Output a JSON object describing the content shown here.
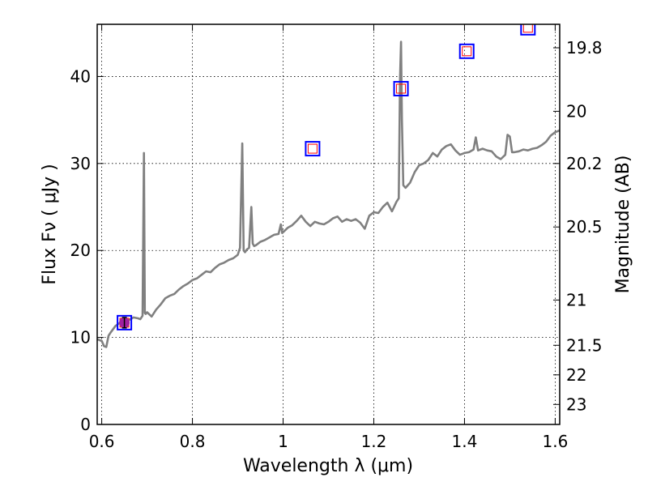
{
  "chart_data": {
    "type": "line",
    "xlabel": "Wavelength  λ (μm)",
    "ylabel": "Flux  Fν  ( μJy )",
    "y2label": "Magnitude (AB)",
    "xlim": [
      0.59,
      1.61
    ],
    "ylim": [
      0,
      46
    ],
    "grid": true,
    "x_ticks": [
      0.6,
      0.8,
      1.0,
      1.2,
      1.4,
      1.6
    ],
    "x_tick_labels": [
      "0.6",
      "0.8",
      "1",
      "1.2",
      "1.4",
      "1.6"
    ],
    "y_ticks": [
      0,
      10,
      20,
      30,
      40
    ],
    "y_tick_labels": [
      "0",
      "10",
      "20",
      "30",
      "40"
    ],
    "y2_ticks": [
      {
        "label": "19.8",
        "flux": 43.3
      },
      {
        "label": "20",
        "flux": 36.0
      },
      {
        "label": "20.2",
        "flux": 30.0
      },
      {
        "label": "20.5",
        "flux": 22.7
      },
      {
        "label": "21",
        "flux": 14.3
      },
      {
        "label": "21.5",
        "flux": 9.1
      },
      {
        "label": "22",
        "flux": 5.7
      },
      {
        "label": "23",
        "flux": 2.3
      }
    ],
    "series": [
      {
        "style": "line",
        "color": "#808080",
        "x": [
          0.59,
          0.6,
          0.605,
          0.61,
          0.615,
          0.62,
          0.63,
          0.64,
          0.65,
          0.66,
          0.67,
          0.68,
          0.685,
          0.69,
          0.693,
          0.695,
          0.697,
          0.7,
          0.71,
          0.72,
          0.73,
          0.74,
          0.75,
          0.76,
          0.77,
          0.78,
          0.79,
          0.8,
          0.81,
          0.82,
          0.83,
          0.84,
          0.85,
          0.86,
          0.87,
          0.88,
          0.89,
          0.9,
          0.905,
          0.91,
          0.913,
          0.916,
          0.92,
          0.925,
          0.93,
          0.933,
          0.936,
          0.94,
          0.95,
          0.96,
          0.97,
          0.98,
          0.99,
          0.995,
          0.998,
          1.0,
          1.01,
          1.02,
          1.03,
          1.04,
          1.05,
          1.06,
          1.07,
          1.08,
          1.09,
          1.1,
          1.11,
          1.12,
          1.13,
          1.14,
          1.15,
          1.16,
          1.17,
          1.18,
          1.19,
          1.2,
          1.21,
          1.22,
          1.23,
          1.24,
          1.25,
          1.255,
          1.258,
          1.26,
          1.262,
          1.265,
          1.27,
          1.28,
          1.29,
          1.3,
          1.31,
          1.32,
          1.33,
          1.34,
          1.35,
          1.36,
          1.37,
          1.38,
          1.39,
          1.4,
          1.41,
          1.42,
          1.425,
          1.43,
          1.44,
          1.45,
          1.46,
          1.47,
          1.48,
          1.49,
          1.495,
          1.5,
          1.505,
          1.51,
          1.52,
          1.53,
          1.54,
          1.55,
          1.56,
          1.57,
          1.58,
          1.59,
          1.6,
          1.61
        ],
        "y": [
          9.8,
          9.6,
          9.0,
          8.9,
          10.2,
          10.6,
          11.3,
          11.7,
          11.6,
          12.0,
          12.3,
          12.2,
          12.1,
          12.5,
          31.2,
          12.8,
          12.7,
          12.9,
          12.4,
          13.2,
          13.8,
          14.5,
          14.8,
          15.0,
          15.5,
          15.9,
          16.2,
          16.6,
          16.8,
          17.2,
          17.6,
          17.5,
          18.0,
          18.4,
          18.6,
          18.9,
          19.1,
          19.5,
          20.3,
          32.3,
          20.0,
          19.8,
          20.1,
          20.3,
          25.0,
          20.8,
          20.5,
          20.6,
          21.0,
          21.2,
          21.5,
          21.8,
          21.9,
          23.0,
          22.0,
          22.1,
          22.6,
          22.9,
          23.4,
          24.0,
          23.3,
          22.8,
          23.3,
          23.1,
          23.0,
          23.3,
          23.7,
          23.9,
          23.3,
          23.6,
          23.4,
          23.6,
          23.2,
          22.5,
          24.0,
          24.4,
          24.3,
          25.0,
          25.5,
          24.5,
          25.6,
          26.0,
          40.0,
          44.0,
          35.0,
          27.5,
          27.2,
          27.8,
          29.0,
          29.8,
          30.0,
          30.4,
          31.2,
          30.8,
          31.6,
          32.0,
          32.2,
          31.5,
          31.0,
          31.2,
          31.3,
          31.6,
          33.0,
          31.5,
          31.7,
          31.5,
          31.4,
          30.8,
          30.5,
          31.0,
          33.3,
          33.1,
          31.3,
          31.3,
          31.4,
          31.6,
          31.5,
          31.7,
          31.8,
          32.1,
          32.5,
          33.2,
          33.6,
          33.8
        ]
      },
      {
        "style": "markers",
        "x": [
          0.65,
          1.065,
          1.26,
          1.405,
          1.54
        ],
        "y": [
          11.7,
          31.7,
          38.6,
          42.9,
          45.6
        ],
        "outer_color": "#0000ff",
        "inner_color": "#ff0000"
      },
      {
        "style": "point",
        "x": [
          0.65
        ],
        "y": [
          11.7
        ],
        "yerr": 0.6,
        "color": "#a020a0"
      }
    ]
  }
}
